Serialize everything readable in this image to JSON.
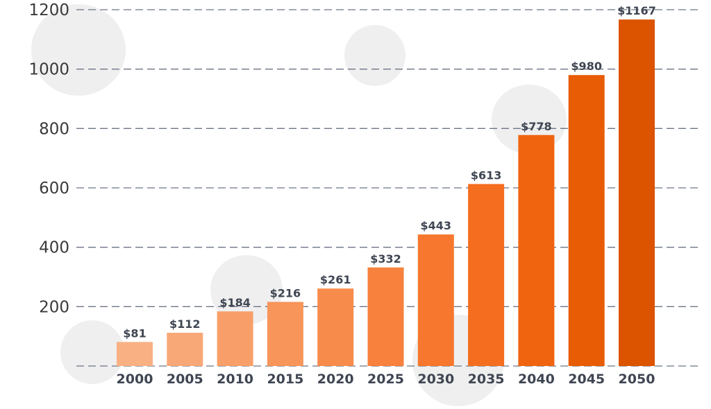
{
  "chart_data": {
    "type": "bar",
    "categories": [
      "2000",
      "2005",
      "2010",
      "2015",
      "2020",
      "2025",
      "2030",
      "2035",
      "2040",
      "2045",
      "2050"
    ],
    "values": [
      81,
      112,
      184,
      216,
      261,
      332,
      443,
      613,
      778,
      980,
      1167
    ],
    "data_labels": [
      "$81",
      "$112",
      "$184",
      "$216",
      "$261",
      "$332",
      "$443",
      "$613",
      "$778",
      "$980",
      "$1167"
    ],
    "title": "",
    "xlabel": "",
    "ylabel": "",
    "ylim": [
      0,
      1200
    ],
    "yticks": [
      1200,
      1000,
      800,
      600,
      400,
      200
    ],
    "grid": "horizontal dashed",
    "legend": "none",
    "colors": [
      "#f9b184",
      "#f8a877",
      "#f89f69",
      "#f8955a",
      "#f78b4c",
      "#f7813d",
      "#f6772d",
      "#f56d1f",
      "#f06410",
      "#e85c05",
      "#dc5300"
    ],
    "grid_color": "#6b7385",
    "decorative_circle_color": "#efefef"
  }
}
